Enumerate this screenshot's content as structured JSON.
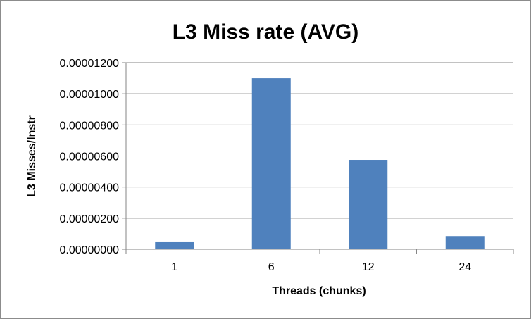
{
  "chart_data": {
    "type": "bar",
    "title": "L3 Miss rate (AVG)",
    "xlabel": "Threads (chunks)",
    "ylabel": "L3 Misses/Instr",
    "categories": [
      "1",
      "6",
      "12",
      "24"
    ],
    "values": [
      5e-07,
      1.1e-05,
      5.75e-06,
      8.5e-07
    ],
    "ylim": [
      0,
      1.2e-05
    ],
    "yticks": [
      "0.00000000",
      "0.00000200",
      "0.00000400",
      "0.00000600",
      "0.00000800",
      "0.00001000",
      "0.00001200"
    ],
    "grid": true,
    "bar_color": "#4f81bd"
  }
}
